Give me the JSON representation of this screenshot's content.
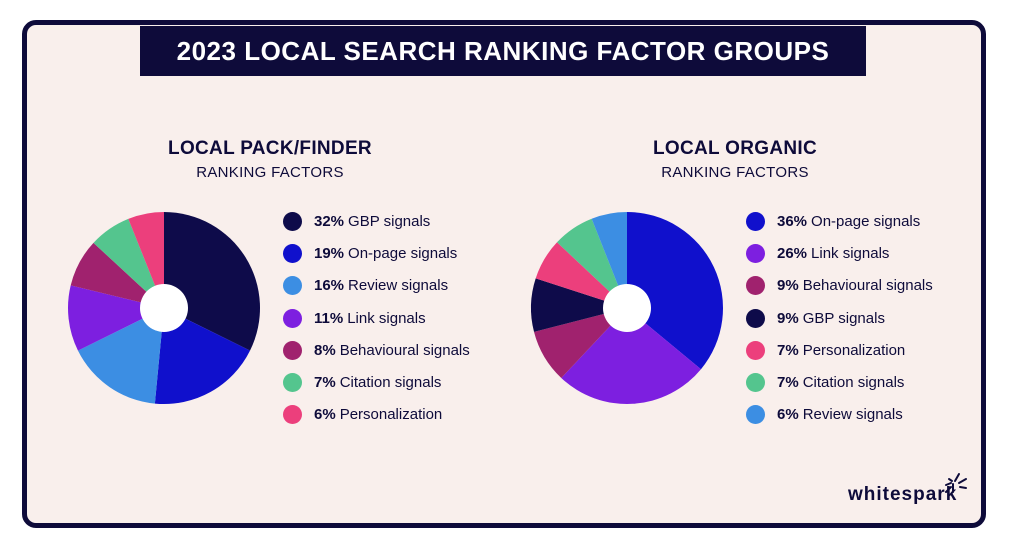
{
  "header": {
    "title": "2023 LOCAL SEARCH RANKING FACTOR GROUPS"
  },
  "colors": {
    "GBP signals": "#0e0b4a",
    "On-page signals": "#1010cc",
    "Review signals": "#3c8ee3",
    "Link signals": "#7d1fe0",
    "Behavioural signals": "#a0226e",
    "Citation signals": "#54c58e",
    "Personalization": "#ec3f7c"
  },
  "chart_data": [
    {
      "type": "pie",
      "title": "LOCAL PACK/FINDER",
      "subtitle": "RANKING FACTORS",
      "legend_position": "right",
      "slices": [
        {
          "label": "GBP signals",
          "pct_label": "32%",
          "value": 32
        },
        {
          "label": "On-page signals",
          "pct_label": "19%",
          "value": 19
        },
        {
          "label": "Review signals",
          "pct_label": "16%",
          "value": 16
        },
        {
          "label": "Link signals",
          "pct_label": "11%",
          "value": 11
        },
        {
          "label": "Behavioural signals",
          "pct_label": "8%",
          "value": 8
        },
        {
          "label": "Citation signals",
          "pct_label": "7%",
          "value": 7
        },
        {
          "label": "Personalization",
          "pct_label": "6%",
          "value": 6
        }
      ]
    },
    {
      "type": "pie",
      "title": "LOCAL ORGANIC",
      "subtitle": "RANKING FACTORS",
      "legend_position": "right",
      "slices": [
        {
          "label": "On-page signals",
          "pct_label": "36%",
          "value": 36
        },
        {
          "label": "Link signals",
          "pct_label": "26%",
          "value": 26
        },
        {
          "label": "Behavioural signals",
          "pct_label": "9%",
          "value": 9
        },
        {
          "label": "GBP signals",
          "pct_label": "9%",
          "value": 9
        },
        {
          "label": "Personalization",
          "pct_label": "7%",
          "value": 7
        },
        {
          "label": "Citation signals",
          "pct_label": "7%",
          "value": 7
        },
        {
          "label": "Review signals",
          "pct_label": "6%",
          "value": 6
        }
      ]
    }
  ],
  "brand": {
    "name": "whitespark",
    "logo_icon": "spark-burst-icon"
  }
}
